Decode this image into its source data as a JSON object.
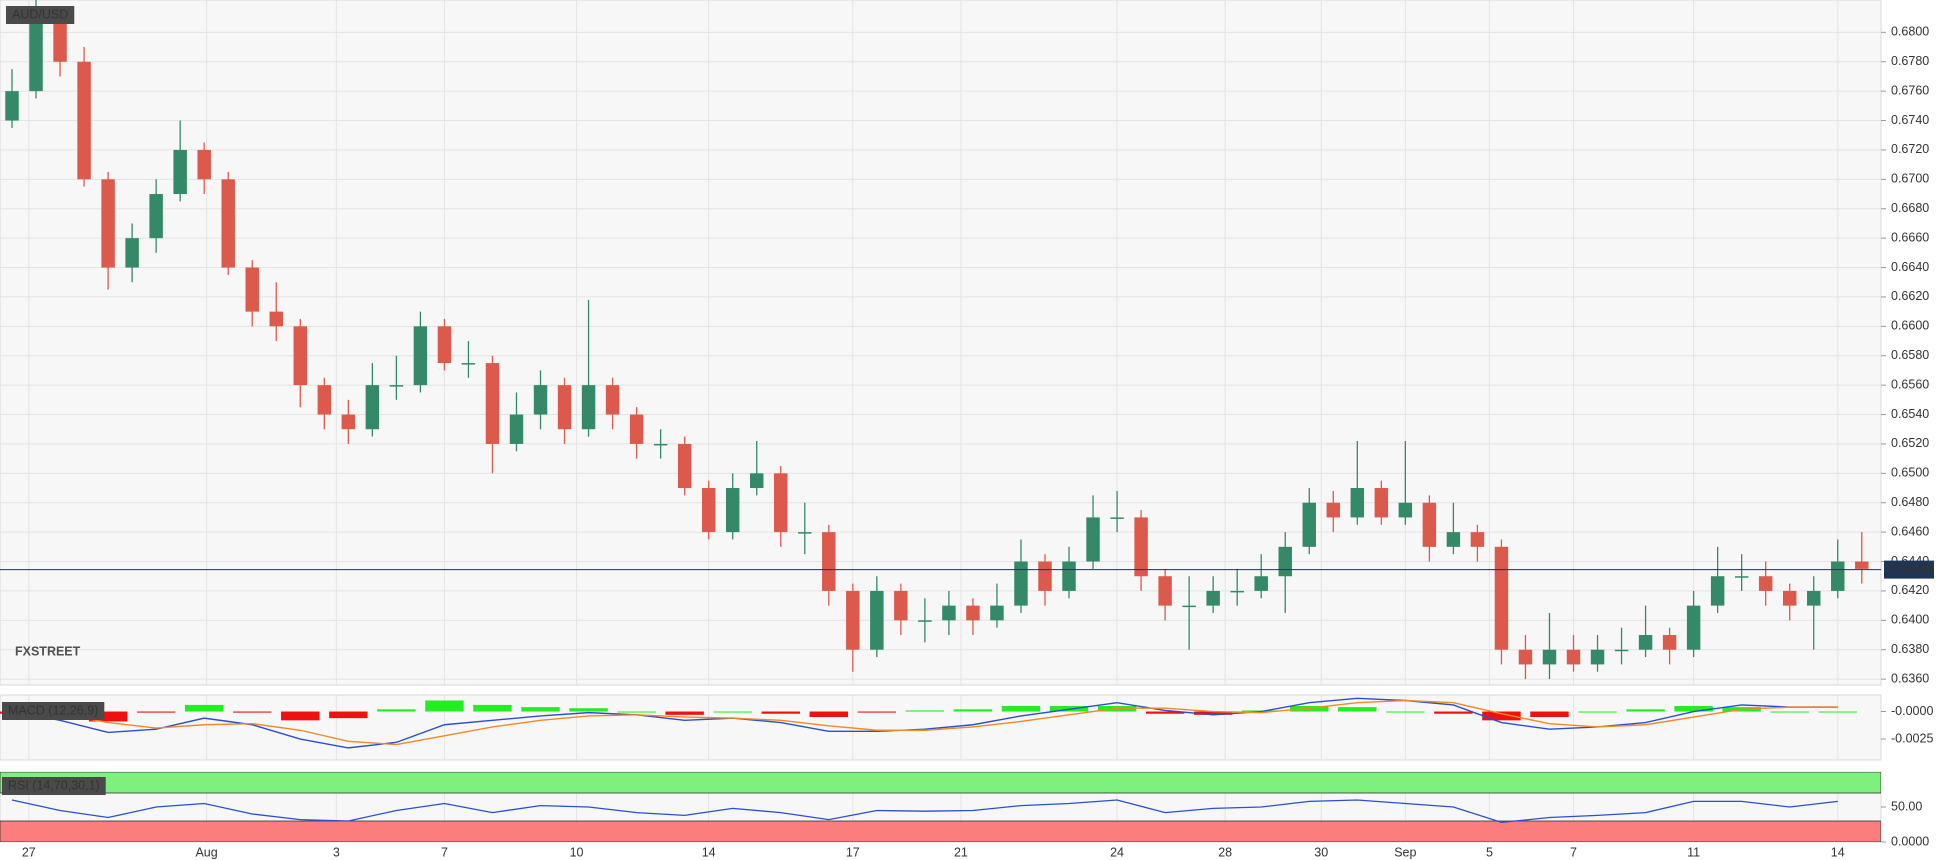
{
  "chart_data": [
    {
      "type": "candlestick",
      "title": "AUD/USD",
      "watermark": "FXSTREET",
      "xlim": [
        -0.5,
        77.8
      ],
      "xticks": [
        {
          "value": 0.7,
          "label": "27"
        },
        {
          "value": 8.1,
          "label": "Aug"
        },
        {
          "value": 13.5,
          "label": "3"
        },
        {
          "value": 18,
          "label": "7"
        },
        {
          "value": 23.5,
          "label": "10"
        },
        {
          "value": 29,
          "label": "14"
        },
        {
          "value": 35,
          "label": "17"
        },
        {
          "value": 39.5,
          "label": "21"
        },
        {
          "value": 46,
          "label": "24"
        },
        {
          "value": 50.5,
          "label": "28"
        },
        {
          "value": 54.5,
          "label": "30"
        },
        {
          "value": 58,
          "label": "Sep"
        },
        {
          "value": 61.5,
          "label": "5"
        },
        {
          "value": 65,
          "label": "7"
        },
        {
          "value": 70,
          "label": "11"
        },
        {
          "value": 76,
          "label": "14"
        }
      ],
      "ylim": [
        0.6356,
        0.6822
      ],
      "yticks": [
        {
          "value": 0.636,
          "label": "0.6360"
        },
        {
          "value": 0.638,
          "label": "0.6380"
        },
        {
          "value": 0.64,
          "label": "0.6400"
        },
        {
          "value": 0.642,
          "label": "0.6420"
        },
        {
          "value": 0.644,
          "label": "0.6440"
        },
        {
          "value": 0.646,
          "label": "0.6460"
        },
        {
          "value": 0.648,
          "label": "0.6480"
        },
        {
          "value": 0.65,
          "label": "0.6500"
        },
        {
          "value": 0.652,
          "label": "0.6520"
        },
        {
          "value": 0.654,
          "label": "0.6540"
        },
        {
          "value": 0.656,
          "label": "0.6560"
        },
        {
          "value": 0.658,
          "label": "0.6580"
        },
        {
          "value": 0.66,
          "label": "0.6600"
        },
        {
          "value": 0.662,
          "label": "0.6620"
        },
        {
          "value": 0.664,
          "label": "0.6640"
        },
        {
          "value": 0.666,
          "label": "0.6660"
        },
        {
          "value": 0.668,
          "label": "0.6680"
        },
        {
          "value": 0.67,
          "label": "0.6700"
        },
        {
          "value": 0.672,
          "label": "0.6720"
        },
        {
          "value": 0.674,
          "label": "0.6740"
        },
        {
          "value": 0.676,
          "label": "0.6760"
        },
        {
          "value": 0.678,
          "label": "0.6780"
        },
        {
          "value": 0.68,
          "label": "0.6800"
        }
      ],
      "grid": true,
      "up_color": "#348a68",
      "down_color": "#dc5a4b",
      "last_price": 0.64345,
      "last_price_color": "#1d3557",
      "open": [
        0.674,
        0.676,
        0.681,
        0.678,
        0.67,
        0.664,
        0.666,
        0.669,
        0.672,
        0.67,
        0.664,
        0.661,
        0.66,
        0.656,
        0.654,
        0.653,
        0.656,
        0.656,
        0.66,
        0.6575,
        0.6575,
        0.652,
        0.654,
        0.656,
        0.653,
        0.656,
        0.654,
        0.652,
        0.652,
        0.649,
        0.646,
        0.649,
        0.65,
        0.646,
        0.646,
        0.642,
        0.638,
        0.642,
        0.64,
        0.64,
        0.641,
        0.64,
        0.641,
        0.644,
        0.642,
        0.644,
        0.647,
        0.647,
        0.643,
        0.641,
        0.641,
        0.642,
        0.642,
        0.643,
        0.645,
        0.648,
        0.647,
        0.649,
        0.647,
        0.648,
        0.645,
        0.646,
        0.645,
        0.638,
        0.637,
        0.638,
        0.637,
        0.638,
        0.638,
        0.639,
        0.638,
        0.641,
        0.643,
        0.643,
        0.642,
        0.641,
        0.642,
        0.644
      ],
      "high": [
        0.6775,
        0.6825,
        0.6815,
        0.679,
        0.6705,
        0.667,
        0.67,
        0.674,
        0.6725,
        0.6705,
        0.6645,
        0.663,
        0.6605,
        0.6565,
        0.655,
        0.6575,
        0.658,
        0.661,
        0.6605,
        0.659,
        0.658,
        0.6555,
        0.657,
        0.6565,
        0.6618,
        0.6565,
        0.6545,
        0.653,
        0.6525,
        0.6495,
        0.65,
        0.6522,
        0.6505,
        0.648,
        0.6465,
        0.6425,
        0.643,
        0.6425,
        0.6415,
        0.642,
        0.6415,
        0.6425,
        0.6455,
        0.6445,
        0.645,
        0.6485,
        0.6488,
        0.6475,
        0.6435,
        0.643,
        0.643,
        0.6435,
        0.6445,
        0.646,
        0.649,
        0.6488,
        0.6522,
        0.6495,
        0.6522,
        0.6485,
        0.648,
        0.6465,
        0.6455,
        0.639,
        0.6405,
        0.639,
        0.639,
        0.6395,
        0.641,
        0.6395,
        0.642,
        0.645,
        0.6445,
        0.644,
        0.6425,
        0.643,
        0.6455,
        0.646
      ],
      "low": [
        0.6735,
        0.6755,
        0.677,
        0.6695,
        0.6625,
        0.663,
        0.665,
        0.6685,
        0.669,
        0.6635,
        0.66,
        0.659,
        0.6545,
        0.653,
        0.652,
        0.6525,
        0.655,
        0.6555,
        0.657,
        0.6565,
        0.65,
        0.6515,
        0.653,
        0.652,
        0.6525,
        0.653,
        0.651,
        0.651,
        0.6485,
        0.6455,
        0.6455,
        0.6485,
        0.645,
        0.6445,
        0.641,
        0.6365,
        0.6375,
        0.639,
        0.6385,
        0.639,
        0.639,
        0.6395,
        0.6405,
        0.641,
        0.6415,
        0.6435,
        0.646,
        0.642,
        0.64,
        0.638,
        0.6405,
        0.641,
        0.6415,
        0.6405,
        0.6445,
        0.646,
        0.6465,
        0.6465,
        0.6465,
        0.644,
        0.6445,
        0.644,
        0.637,
        0.636,
        0.636,
        0.6365,
        0.6365,
        0.637,
        0.6375,
        0.637,
        0.6375,
        0.6405,
        0.642,
        0.641,
        0.64,
        0.638,
        0.6415,
        0.6425
      ],
      "close": [
        0.676,
        0.681,
        0.678,
        0.67,
        0.664,
        0.666,
        0.669,
        0.672,
        0.67,
        0.664,
        0.661,
        0.66,
        0.656,
        0.654,
        0.653,
        0.656,
        0.656,
        0.66,
        0.6575,
        0.6575,
        0.652,
        0.654,
        0.656,
        0.653,
        0.656,
        0.654,
        0.652,
        0.652,
        0.649,
        0.646,
        0.649,
        0.65,
        0.646,
        0.646,
        0.642,
        0.638,
        0.642,
        0.64,
        0.64,
        0.641,
        0.64,
        0.641,
        0.644,
        0.642,
        0.644,
        0.647,
        0.647,
        0.643,
        0.641,
        0.641,
        0.642,
        0.642,
        0.643,
        0.645,
        0.648,
        0.647,
        0.649,
        0.647,
        0.648,
        0.645,
        0.646,
        0.645,
        0.638,
        0.637,
        0.638,
        0.637,
        0.638,
        0.638,
        0.639,
        0.638,
        0.641,
        0.643,
        0.643,
        0.642,
        0.641,
        0.642,
        0.644,
        0.6435
      ]
    },
    {
      "type": "combo",
      "title": "MACD (12,26,9)",
      "ylim": [
        -0.0044,
        0.0015
      ],
      "yticks": [
        {
          "value": 0,
          "label": "-0.0000"
        },
        {
          "value": -0.0025,
          "label": "-0.0025"
        }
      ],
      "x": [
        0,
        2,
        4,
        6,
        8,
        10,
        12,
        14,
        16,
        18,
        20,
        22,
        24,
        26,
        28,
        30,
        32,
        34,
        36,
        38,
        40,
        42,
        44,
        46,
        48,
        50,
        52,
        54,
        56,
        58,
        60,
        62,
        64,
        66,
        68,
        70,
        72,
        74,
        76
      ],
      "series": [
        {
          "color": "#2a4fd0",
          "values": [
            0.0,
            -0.0008,
            -0.0019,
            -0.0016,
            -0.0006,
            -0.0012,
            -0.0025,
            -0.0033,
            -0.0028,
            -0.0012,
            -0.0008,
            -0.0004,
            -0.0001,
            -0.0003,
            -0.0008,
            -0.0006,
            -0.001,
            -0.0018,
            -0.0018,
            -0.0016,
            -0.0012,
            -0.0004,
            0.0002,
            0.0008,
            0.0001,
            -0.0003,
            0.0,
            0.0008,
            0.0012,
            0.001,
            0.0006,
            -0.001,
            -0.0016,
            -0.0014,
            -0.001,
            0.0,
            0.0006,
            0.0004,
            0.0004
          ]
        },
        {
          "color": "#f08a24",
          "values": [
            0.0002,
            -0.0002,
            -0.001,
            -0.0015,
            -0.0012,
            -0.0011,
            -0.0017,
            -0.0027,
            -0.003,
            -0.0022,
            -0.0014,
            -0.0008,
            -0.0004,
            -0.0003,
            -0.0005,
            -0.0006,
            -0.0008,
            -0.0013,
            -0.0017,
            -0.0017,
            -0.0014,
            -0.0009,
            -0.0003,
            0.0003,
            0.0003,
            0.0,
            -0.0001,
            0.0003,
            0.0008,
            0.001,
            0.0008,
            -0.0002,
            -0.0011,
            -0.0014,
            -0.0012,
            -0.0005,
            0.0002,
            0.0004,
            0.0004
          ]
        }
      ],
      "histogram": [
        -0.0002,
        -0.0006,
        -0.0009,
        -0.0001,
        0.0006,
        -0.0001,
        -0.0008,
        -0.0006,
        0.0002,
        0.001,
        0.0006,
        0.0004,
        0.0003,
        0.0,
        -0.0003,
        0.0,
        -0.0002,
        -0.0005,
        -0.0001,
        0.0001,
        0.0002,
        0.0005,
        0.0005,
        0.0005,
        -0.0002,
        -0.0003,
        0.0001,
        0.0005,
        0.0004,
        0.0,
        -0.0002,
        -0.0008,
        -0.0005,
        0.0,
        0.0002,
        0.0005,
        0.0004,
        0.0,
        0.0
      ],
      "histogram_up_color": "#22ee22",
      "histogram_down_color": "#ee1111"
    },
    {
      "type": "line",
      "title": "RSI (14,70,30,1)",
      "ylim": [
        0,
        100
      ],
      "yticks": [
        {
          "value": 50,
          "label": "50.00"
        },
        {
          "value": 0,
          "label": "0.0000"
        }
      ],
      "bands": [
        30,
        70
      ],
      "upper_band_color": "#7ef07e",
      "lower_band_color": "#fb7d7d",
      "x": [
        0,
        2,
        4,
        6,
        8,
        10,
        12,
        14,
        16,
        18,
        20,
        22,
        24,
        26,
        28,
        30,
        32,
        34,
        36,
        38,
        40,
        42,
        44,
        46,
        48,
        50,
        52,
        54,
        56,
        58,
        60,
        62,
        64,
        66,
        68,
        70,
        72,
        74,
        76
      ],
      "color": "#2a4fd0",
      "values": [
        60,
        45,
        35,
        50,
        55,
        40,
        32,
        30,
        45,
        55,
        42,
        52,
        50,
        42,
        38,
        48,
        42,
        32,
        45,
        44,
        45,
        52,
        55,
        60,
        42,
        48,
        50,
        58,
        60,
        55,
        50,
        28,
        35,
        38,
        42,
        58,
        58,
        50,
        58
      ]
    }
  ]
}
